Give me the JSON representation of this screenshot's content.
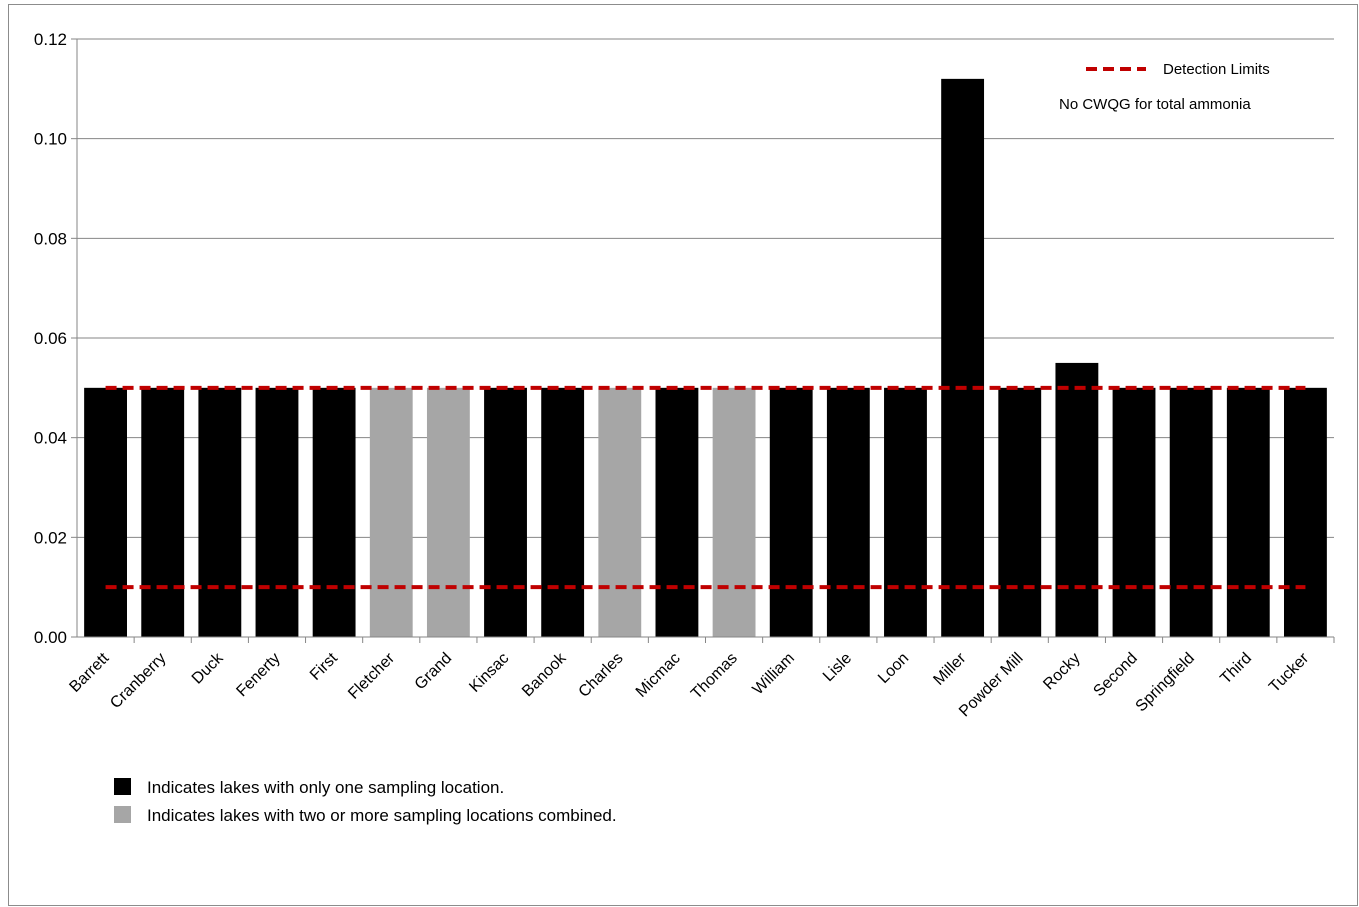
{
  "chart_data": {
    "type": "bar",
    "categories": [
      "Barrett",
      "Cranberry",
      "Duck",
      "Fenerty",
      "First",
      "Fletcher",
      "Grand",
      "Kinsac",
      "Banook",
      "Charles",
      "Micmac",
      "Thomas",
      "William",
      "Lisle",
      "Loon",
      "Miller",
      "Powder Mill",
      "Rocky",
      "Second",
      "Springfield",
      "Third",
      "Tucker"
    ],
    "values": [
      0.05,
      0.05,
      0.05,
      0.05,
      0.05,
      0.05,
      0.05,
      0.05,
      0.05,
      0.05,
      0.05,
      0.05,
      0.05,
      0.05,
      0.05,
      0.112,
      0.05,
      0.055,
      0.05,
      0.05,
      0.05,
      0.05
    ],
    "bar_groups": [
      "single",
      "single",
      "single",
      "single",
      "single",
      "combined",
      "combined",
      "single",
      "single",
      "combined",
      "single",
      "combined",
      "single",
      "single",
      "single",
      "single",
      "single",
      "single",
      "single",
      "single",
      "single",
      "single"
    ],
    "ylim": [
      0,
      0.12
    ],
    "yticks": [
      "0.00",
      "0.02",
      "0.04",
      "0.06",
      "0.08",
      "0.10",
      "0.12"
    ],
    "ytick_values": [
      0,
      0.02,
      0.04,
      0.06,
      0.08,
      0.1,
      0.12
    ],
    "grid": true,
    "detection_limits": [
      0.05,
      0.01
    ],
    "legend": {
      "position": "top-right",
      "detection_label": "Detection Limits",
      "note": "No CWQG for total ammonia"
    },
    "key": [
      {
        "group": "single",
        "label": "Indicates lakes with only one sampling location."
      },
      {
        "group": "combined",
        "label": "Indicates lakes with two or more sampling locations combined."
      }
    ],
    "colors": {
      "single": "#000000",
      "combined": "#a6a6a6",
      "detection_line": "#c00000",
      "grid": "#868686"
    }
  }
}
